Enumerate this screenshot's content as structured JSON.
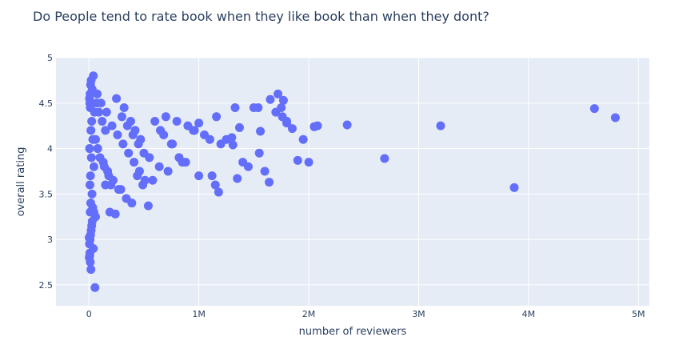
{
  "chart_data": {
    "type": "scatter",
    "title": "Do People tend to rate book when they like book than when they dont?",
    "xlabel": "number of reviewers",
    "ylabel": "overall rating",
    "xlim": [
      -300000,
      5100000
    ],
    "ylim": [
      2.27,
      5.0
    ],
    "x_ticks": [
      0,
      1000000,
      2000000,
      3000000,
      4000000,
      5000000
    ],
    "x_tick_labels": [
      "0",
      "1M",
      "2M",
      "3M",
      "4M",
      "5M"
    ],
    "y_ticks": [
      2.5,
      3,
      3.5,
      4,
      4.5,
      5
    ],
    "y_tick_labels": [
      "2.5",
      "3",
      "3.5",
      "4",
      "4.5",
      "5"
    ],
    "grid": true,
    "colors": {
      "marker": "#636efa",
      "plot_bg": "#e5ecf6",
      "grid": "#ffffff",
      "text": "#2a3f5f"
    },
    "series": [
      {
        "x": [
          40000,
          15000,
          10000,
          5000,
          20000,
          30000,
          8000,
          12000,
          50000,
          25000,
          18000,
          35000,
          6000,
          22000,
          45000,
          14000,
          9000,
          28000,
          16000,
          11000,
          70000,
          90000,
          120000,
          150000,
          60000,
          80000,
          100000,
          140000,
          180000,
          200000,
          250000,
          300000,
          350000,
          400000,
          450000,
          500000,
          130000,
          170000,
          220000,
          270000,
          320000,
          380000,
          420000,
          470000,
          75000,
          110000,
          160000,
          210000,
          260000,
          310000,
          360000,
          410000,
          460000,
          510000,
          550000,
          600000,
          650000,
          700000,
          750000,
          800000,
          850000,
          900000,
          950000,
          1000000,
          1050000,
          1100000,
          1150000,
          1200000,
          1250000,
          1300000,
          1350000,
          1400000,
          1450000,
          1500000,
          1550000,
          1600000,
          1650000,
          1700000,
          1750000,
          1800000,
          1850000,
          1900000,
          1950000,
          2000000,
          2050000,
          2080000,
          1720000,
          1760000,
          1640000,
          1160000,
          1180000,
          1120000,
          1000000,
          960000,
          880000,
          820000,
          760000,
          720000,
          680000,
          640000,
          580000,
          540000,
          490000,
          440000,
          390000,
          340000,
          290000,
          240000,
          190000,
          150000,
          30000,
          20000,
          10000,
          5000,
          40000,
          60000,
          25000,
          15000,
          8000,
          35000,
          3000,
          12000,
          18000,
          45000,
          7000,
          2000,
          55000,
          2350000,
          2690000,
          3200000,
          3870000,
          4600000,
          4790000,
          1330000,
          1770000,
          1800000,
          1560000,
          1540000,
          1370000,
          1310000
        ],
        "y": [
          4.8,
          4.7,
          4.6,
          4.55,
          4.75,
          4.65,
          4.5,
          4.45,
          4.4,
          4.3,
          4.2,
          4.1,
          4.0,
          3.9,
          3.8,
          3.7,
          3.6,
          3.5,
          3.4,
          3.3,
          4.5,
          4.4,
          4.3,
          4.2,
          4.1,
          4.0,
          3.9,
          3.8,
          3.7,
          3.6,
          4.55,
          4.35,
          4.25,
          4.15,
          4.05,
          3.95,
          3.85,
          3.75,
          3.65,
          3.55,
          4.45,
          4.3,
          4.2,
          4.1,
          4.6,
          4.5,
          4.4,
          4.25,
          4.15,
          4.05,
          3.95,
          3.85,
          3.75,
          3.65,
          3.9,
          4.3,
          4.2,
          4.35,
          4.05,
          4.3,
          3.85,
          4.25,
          4.2,
          4.28,
          4.15,
          4.1,
          3.6,
          4.05,
          4.1,
          4.12,
          3.67,
          3.85,
          3.8,
          4.45,
          3.95,
          3.75,
          4.54,
          4.4,
          4.45,
          4.3,
          4.22,
          3.87,
          4.1,
          3.85,
          4.24,
          4.25,
          4.6,
          4.35,
          3.63,
          4.35,
          3.52,
          3.7,
          3.7,
          4.2,
          3.85,
          3.9,
          4.05,
          3.75,
          4.15,
          3.8,
          3.65,
          3.37,
          3.6,
          3.7,
          3.4,
          3.45,
          3.55,
          3.28,
          3.3,
          3.6,
          3.2,
          3.1,
          3.0,
          2.95,
          2.9,
          3.25,
          3.15,
          3.05,
          2.85,
          3.35,
          2.8,
          2.75,
          2.67,
          3.3,
          2.82,
          3.02,
          2.47,
          4.26,
          3.89,
          4.25,
          3.57,
          4.44,
          4.34,
          4.45,
          4.53,
          4.28,
          4.19,
          4.45,
          4.23,
          4.04
        ]
      }
    ]
  }
}
